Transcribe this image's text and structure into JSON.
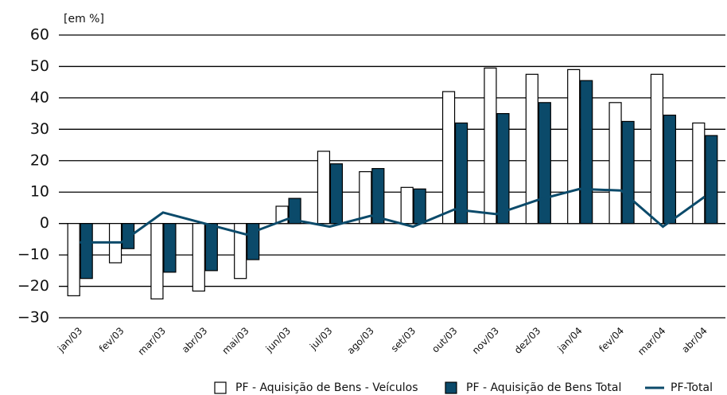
{
  "chart_data": {
    "type": "bar_line",
    "y_label": "[em %]",
    "categories": [
      "jan/03",
      "fev/03",
      "mar/03",
      "abr/03",
      "mai/03",
      "jun/03",
      "jul/03",
      "ago/03",
      "set/03",
      "out/03",
      "nov/03",
      "dez/03",
      "jan/04",
      "fev/04",
      "mar/04",
      "abr/04"
    ],
    "series": [
      {
        "name": "PF - Aquisição de Bens - Veículos",
        "color": "#ffffff",
        "kind": "bar",
        "values": [
          -23,
          -12.5,
          -24,
          -21.5,
          -17.5,
          5.5,
          23,
          16.5,
          11.5,
          42,
          49.5,
          47.5,
          49,
          38.5,
          47.5,
          32
        ]
      },
      {
        "name": "PF - Aquisição de Bens Total",
        "color": "#0b4a6a",
        "kind": "bar",
        "values": [
          -17.5,
          -8,
          -15.5,
          -15,
          -11.5,
          8,
          19,
          17.5,
          11,
          32,
          35,
          38.5,
          45.5,
          32.5,
          34.5,
          28
        ]
      },
      {
        "name": "PF-Total",
        "color": "#0b4a6a",
        "kind": "line",
        "values": [
          -6,
          -6,
          3.5,
          0,
          -3.5,
          1.5,
          -1,
          2.5,
          -1,
          4.5,
          3,
          7.5,
          11,
          10.5,
          -1,
          8.5
        ]
      }
    ],
    "ylim": [
      -30,
      60
    ],
    "yticks": [
      {
        "value": -30,
        "label": "−30"
      },
      {
        "value": -20,
        "label": "−20"
      },
      {
        "value": -10,
        "label": "−10"
      },
      0,
      10,
      20,
      30,
      40,
      50,
      60
    ],
    "grid": true
  }
}
